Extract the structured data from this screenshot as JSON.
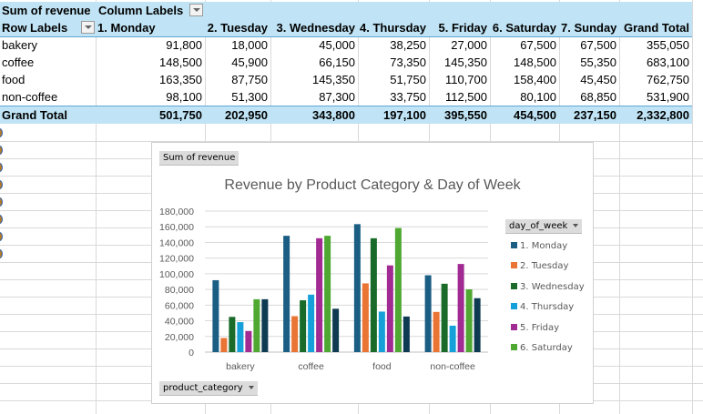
{
  "pivot": {
    "value_field": "Sum of revenue",
    "column_labels_caption": "Column Labels",
    "row_labels_caption": "Row Labels",
    "columns": [
      "1. Monday",
      "2. Tuesday",
      "3. Wednesday",
      "4. Thursday",
      "5. Friday",
      "6. Saturday",
      "7. Sunday",
      "Grand Total"
    ],
    "rows": [
      {
        "label": "bakery",
        "values": [
          "91,800",
          "18,000",
          "45,000",
          "38,250",
          "27,000",
          "67,500",
          "67,500",
          "355,050"
        ]
      },
      {
        "label": "coffee",
        "values": [
          "148,500",
          "45,900",
          "66,150",
          "73,350",
          "145,350",
          "148,500",
          "55,350",
          "683,100"
        ]
      },
      {
        "label": "food",
        "values": [
          "163,350",
          "87,750",
          "145,350",
          "51,750",
          "110,700",
          "158,400",
          "45,450",
          "762,750"
        ]
      },
      {
        "label": "non-coffee",
        "values": [
          "98,100",
          "51,300",
          "87,300",
          "33,750",
          "112,500",
          "80,100",
          "68,850",
          "531,900"
        ]
      }
    ],
    "grand_total": {
      "label": "Grand Total",
      "values": [
        "501,750",
        "202,950",
        "343,800",
        "197,100",
        "395,550",
        "454,500",
        "237,150",
        "2,332,800"
      ]
    }
  },
  "chart": {
    "value_field_button": "Sum of revenue",
    "axis_field_button": "product_category",
    "legend_field_button": "day_of_week",
    "legend_visible_items": [
      "1. Monday",
      "2. Tuesday",
      "3. Wednesday",
      "4. Thursday",
      "5. Friday",
      "6. Saturday"
    ]
  },
  "chart_data": {
    "type": "bar",
    "title": "Revenue by Product Category & Day of Week",
    "xlabel": "",
    "ylabel": "",
    "categories": [
      "bakery",
      "coffee",
      "food",
      "non-coffee"
    ],
    "ylim": [
      0,
      180000
    ],
    "yticks": [
      0,
      20000,
      40000,
      60000,
      80000,
      100000,
      120000,
      140000,
      160000,
      180000
    ],
    "ytick_labels": [
      "0",
      "20,000",
      "40,000",
      "60,000",
      "80,000",
      "100,000",
      "120,000",
      "140,000",
      "160,000",
      "180,000"
    ],
    "grid": true,
    "legend_position": "right",
    "series": [
      {
        "name": "1. Monday",
        "color": "#1b5e84",
        "values": [
          91800,
          148500,
          163350,
          98100
        ]
      },
      {
        "name": "2. Tuesday",
        "color": "#ea7434",
        "values": [
          18000,
          45900,
          87750,
          51300
        ]
      },
      {
        "name": "3. Wednesday",
        "color": "#1a6b2a",
        "values": [
          45000,
          66150,
          145350,
          87300
        ]
      },
      {
        "name": "4. Thursday",
        "color": "#16a0d9",
        "values": [
          38250,
          73350,
          51750,
          33750
        ]
      },
      {
        "name": "5. Friday",
        "color": "#a12b93",
        "values": [
          27000,
          145350,
          110700,
          112500
        ]
      },
      {
        "name": "6. Saturday",
        "color": "#4fa832",
        "values": [
          67500,
          148500,
          158400,
          80100
        ]
      },
      {
        "name": "7. Sunday",
        "color": "#0e3a52",
        "values": [
          67500,
          55350,
          45450,
          68850
        ]
      }
    ]
  }
}
